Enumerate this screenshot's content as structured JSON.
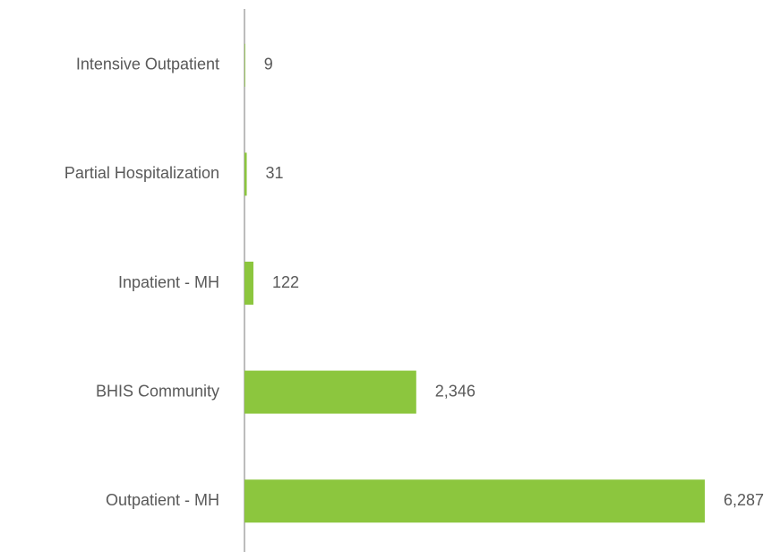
{
  "chart_data": {
    "type": "barh",
    "categories": [
      "Intensive Outpatient",
      "Partial Hospitalization",
      "Inpatient - MH",
      "BHIS Community",
      "Outpatient - MH"
    ],
    "values": [
      9,
      31,
      122,
      2346,
      6287
    ],
    "value_labels": [
      "9",
      "31",
      "122",
      "2,346",
      "6,287"
    ],
    "color": "#8cc63e"
  }
}
